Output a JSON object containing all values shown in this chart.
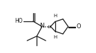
{
  "bg_color": "#ffffff",
  "line_color": "#1a1a1a",
  "line_width": 0.9,
  "font_size": 5.5,
  "figsize": [
    1.39,
    0.77
  ],
  "dpi": 100,
  "xlim": [
    0,
    10
  ],
  "ylim": [
    0,
    7
  ]
}
